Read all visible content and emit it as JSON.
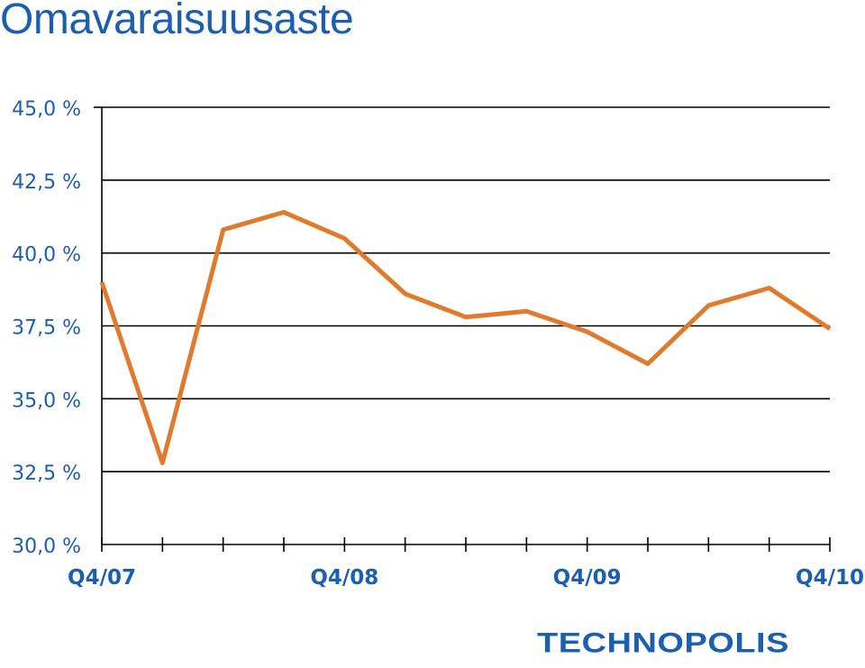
{
  "chart_data": {
    "type": "line",
    "title": "Omavaraisuusaste",
    "ylim": [
      30.0,
      45.0
    ],
    "y_ticks": [
      "30,0 %",
      "32,5 %",
      "35,0 %",
      "37,5 %",
      "40,0 %",
      "42,5 %",
      "45,0 %"
    ],
    "y_tick_values": [
      30.0,
      32.5,
      35.0,
      37.5,
      40.0,
      42.5,
      45.0
    ],
    "x_tick_labels": [
      {
        "index": 0,
        "label": "Q4/07"
      },
      {
        "index": 4,
        "label": "Q4/08"
      },
      {
        "index": 8,
        "label": "Q4/09"
      },
      {
        "index": 12,
        "label": "Q4/10"
      }
    ],
    "series": [
      {
        "color": "#e07b2b",
        "values": [
          39.0,
          32.8,
          40.8,
          41.4,
          40.5,
          38.6,
          37.8,
          38.0,
          37.3,
          36.2,
          38.2,
          38.8,
          37.4
        ]
      }
    ],
    "grid": true,
    "legend": "none"
  },
  "brand": {
    "logo_text": "TECHNOPOLIS",
    "logo_color": "#1c5fae",
    "title_color": "#1c5fae"
  }
}
